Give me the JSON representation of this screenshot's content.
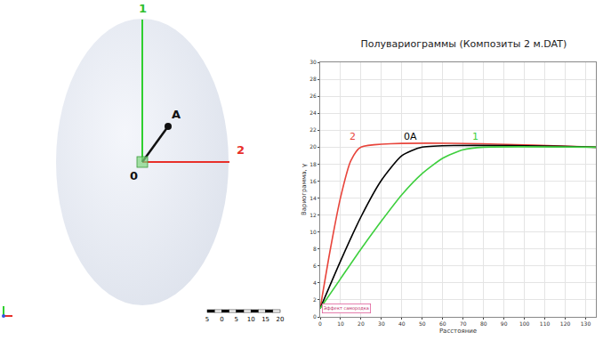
{
  "diagram": {
    "axis_1": "1",
    "axis_2": "2",
    "point_a": "A",
    "origin": "0",
    "scale_bar": [
      "5",
      "0",
      "5",
      "10",
      "15",
      "20"
    ]
  },
  "chart_data": {
    "type": "line",
    "title": "Полувариограммы (Композиты 2 м.DAT)",
    "x_label": "Расстояние",
    "y_label": "Вариограмма, γ",
    "series": [
      {
        "name": "2",
        "color": "#e8453c",
        "x": [
          0,
          5,
          10,
          15,
          20,
          135
        ],
        "values": [
          1,
          8,
          14.1,
          18.4,
          20,
          20
        ]
      },
      {
        "name": "0A",
        "color": "#000000",
        "x": [
          0,
          10,
          20,
          30,
          40,
          50,
          135
        ],
        "values": [
          1,
          6.6,
          11.8,
          16.1,
          19,
          20,
          20
        ]
      },
      {
        "name": "1",
        "color": "#3ecf3e",
        "x": [
          0,
          10,
          20,
          30,
          40,
          50,
          60,
          70,
          80,
          135
        ],
        "values": [
          1,
          4.5,
          8,
          11.3,
          14.4,
          16.9,
          18.7,
          19.7,
          20,
          20
        ]
      }
    ],
    "annotations": [
      {
        "text": "Эффект самородка",
        "x": 0,
        "y": 1
      }
    ],
    "xlim": [
      0,
      135
    ],
    "xticks": [
      0,
      10,
      20,
      30,
      40,
      50,
      60,
      70,
      80,
      90,
      100,
      110,
      120,
      130
    ],
    "ylim": [
      0,
      30
    ],
    "yticks": [
      0,
      2,
      4,
      6,
      8,
      10,
      12,
      14,
      16,
      18,
      20,
      22,
      24,
      26,
      28,
      30
    ],
    "grid": true
  }
}
